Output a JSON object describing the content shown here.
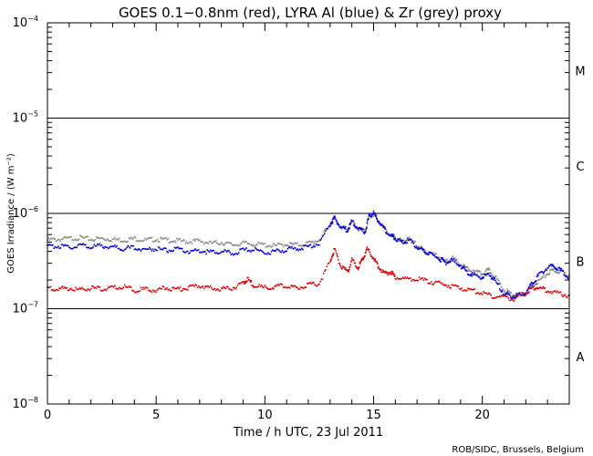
{
  "chart_data": {
    "type": "scatter",
    "title": "GOES 0.1−0.8nm (red), LYRA Al (blue) & Zr (grey) proxy",
    "xlabel": "Time / h UTC, 23 Jul 2011",
    "ylabel": "GOES Irradiance / (W m⁻²)",
    "xlim": [
      0,
      24
    ],
    "ylim": [
      1e-08,
      0.0001
    ],
    "yscale": "log",
    "x_ticks": [
      {
        "value": 0,
        "label": "0"
      },
      {
        "value": 5,
        "label": "5"
      },
      {
        "value": 10,
        "label": "10"
      },
      {
        "value": 15,
        "label": "15"
      },
      {
        "value": 20,
        "label": "20"
      }
    ],
    "y_ticks": [
      {
        "value": 1e-08,
        "base": "10",
        "exp": "−8"
      },
      {
        "value": 1e-07,
        "base": "10",
        "exp": "−7"
      },
      {
        "value": 1e-06,
        "base": "10",
        "exp": "−6"
      },
      {
        "value": 1e-05,
        "base": "10",
        "exp": "−5"
      },
      {
        "value": 0.0001,
        "base": "10",
        "exp": "−4"
      }
    ],
    "class_lines": [
      1e-07,
      1e-06,
      1e-05
    ],
    "flare_classes": [
      {
        "label": "A",
        "value": 3.16e-08
      },
      {
        "label": "B",
        "value": 3.16e-07
      },
      {
        "label": "C",
        "value": 3.16e-06
      },
      {
        "label": "M",
        "value": 3.16e-05
      }
    ],
    "series": [
      {
        "name": "LYRA Zr (grey) proxy",
        "color": "#888888",
        "x": [
          0,
          0.5,
          1,
          1.5,
          2,
          2.5,
          3,
          3.5,
          4,
          4.5,
          5,
          5.5,
          6,
          6.5,
          7,
          7.5,
          8,
          8.5,
          9,
          9.5,
          10,
          10.5,
          11,
          11.5,
          12,
          12.5,
          13,
          13.2,
          13.5,
          13.8,
          14,
          14.3,
          14.6,
          14.8,
          15,
          15.2,
          15.5,
          15.8,
          16,
          16.3,
          16.6,
          17,
          17.3,
          17.6,
          18,
          18.3,
          18.6,
          19,
          19.3,
          19.6,
          20,
          20.3,
          20.6,
          21,
          21.3,
          21.6,
          22,
          22.3,
          22.6,
          23,
          23.3,
          23.6,
          24
        ],
        "y": [
          5.4e-07,
          5.5e-07,
          5.6e-07,
          5.7e-07,
          5.5e-07,
          5.6e-07,
          5.5e-07,
          5.4e-07,
          5.6e-07,
          5.4e-07,
          5.5e-07,
          5.4e-07,
          5.3e-07,
          5.2e-07,
          5.3e-07,
          5e-07,
          5.1e-07,
          4.8e-07,
          5e-07,
          4.9e-07,
          4.8e-07,
          4.7e-07,
          4.9e-07,
          4.8e-07,
          5e-07,
          5.4e-07,
          7.8e-07,
          9e-07,
          7.5e-07,
          6.8e-07,
          8.5e-07,
          7e-07,
          6.5e-07,
          9.4e-07,
          1e-06,
          8.6e-07,
          7.2e-07,
          6e-07,
          5.8e-07,
          5.2e-07,
          5.6e-07,
          4.8e-07,
          4.2e-07,
          4e-07,
          3.6e-07,
          3.2e-07,
          3.5e-07,
          3e-07,
          2.7e-07,
          2.5e-07,
          2.4e-07,
          2.6e-07,
          2.2e-07,
          1.6e-07,
          1.5e-07,
          1.4e-07,
          1.5e-07,
          1.8e-07,
          2e-07,
          2.4e-07,
          2.6e-07,
          2.5e-07,
          2.3e-07
        ]
      },
      {
        "name": "LYRA Al (blue) proxy",
        "color": "#0000dd",
        "x": [
          0,
          0.5,
          1,
          1.5,
          2,
          2.5,
          3,
          3.5,
          4,
          4.5,
          5,
          5.5,
          6,
          6.5,
          7,
          7.5,
          8,
          8.5,
          9,
          9.5,
          10,
          10.5,
          11,
          11.5,
          12,
          12.5,
          13,
          13.2,
          13.5,
          13.8,
          14,
          14.3,
          14.6,
          14.8,
          15,
          15.2,
          15.5,
          15.8,
          16,
          16.3,
          16.6,
          17,
          17.3,
          17.6,
          18,
          18.3,
          18.6,
          19,
          19.3,
          19.6,
          20,
          20.3,
          20.6,
          21,
          21.3,
          21.6,
          22,
          22.3,
          22.6,
          23,
          23.3,
          23.6,
          24
        ],
        "y": [
          4.6e-07,
          4.7e-07,
          4.5e-07,
          4.8e-07,
          4.6e-07,
          4.7e-07,
          4.6e-07,
          4.4e-07,
          4.5e-07,
          4.3e-07,
          4.4e-07,
          4.2e-07,
          4.3e-07,
          4.1e-07,
          4.2e-07,
          4e-07,
          4.1e-07,
          3.9e-07,
          4.2e-07,
          4.3e-07,
          4e-07,
          4.1e-07,
          4.3e-07,
          4.4e-07,
          4.6e-07,
          5e-07,
          8e-07,
          9.2e-07,
          7.4e-07,
          6.9e-07,
          8.4e-07,
          7.1e-07,
          6.5e-07,
          9.6e-07,
          1.05e-06,
          8.8e-07,
          7e-07,
          6e-07,
          5.6e-07,
          5.1e-07,
          5.4e-07,
          4.6e-07,
          4.1e-07,
          3.9e-07,
          3.5e-07,
          3.1e-07,
          3.3e-07,
          2.9e-07,
          2.5e-07,
          2.3e-07,
          2.2e-07,
          2.4e-07,
          2e-07,
          1.5e-07,
          1.4e-07,
          1.4e-07,
          1.5e-07,
          1.9e-07,
          2.3e-07,
          2.8e-07,
          2.9e-07,
          2.6e-07,
          2.2e-07
        ]
      },
      {
        "name": "GOES 0.1−0.8nm (red)",
        "color": "#dd0000",
        "x": [
          0,
          0.5,
          1,
          1.5,
          2,
          2.5,
          3,
          3.5,
          4,
          4.5,
          5,
          5.5,
          6,
          6.5,
          7,
          7.5,
          8,
          8.5,
          9,
          9.2,
          9.5,
          10,
          10.5,
          11,
          11.5,
          12,
          12.5,
          13,
          13.2,
          13.5,
          13.8,
          14,
          14.3,
          14.5,
          14.7,
          15,
          15.2,
          15.5,
          15.8,
          16,
          16.5,
          17,
          17.5,
          18,
          18.5,
          19,
          19.5,
          20,
          20.5,
          21,
          21.5,
          22,
          22.3,
          22.6,
          23,
          23.5,
          24
        ],
        "y": [
          1.7e-07,
          1.65e-07,
          1.7e-07,
          1.6e-07,
          1.7e-07,
          1.65e-07,
          1.7e-07,
          1.75e-07,
          1.6e-07,
          1.65e-07,
          1.6e-07,
          1.7e-07,
          1.65e-07,
          1.7e-07,
          1.8e-07,
          1.7e-07,
          1.65e-07,
          1.7e-07,
          1.9e-07,
          2.1e-07,
          1.8e-07,
          1.7e-07,
          1.75e-07,
          1.8e-07,
          1.7e-07,
          1.8e-07,
          1.9e-07,
          3.2e-07,
          4.3e-07,
          2.9e-07,
          2.5e-07,
          3.3e-07,
          2.8e-07,
          3.4e-07,
          4.4e-07,
          3.5e-07,
          2.9e-07,
          2.4e-07,
          2.5e-07,
          2.2e-07,
          2.1e-07,
          2.1e-07,
          2e-07,
          1.9e-07,
          1.8e-07,
          1.7e-07,
          1.6e-07,
          1.5e-07,
          1.4e-07,
          1.35e-07,
          1.3e-07,
          1.5e-07,
          1.7e-07,
          1.7e-07,
          1.6e-07,
          1.5e-07,
          1.4e-07
        ]
      }
    ]
  },
  "credit": "ROB/SIDC, Brussels, Belgium"
}
